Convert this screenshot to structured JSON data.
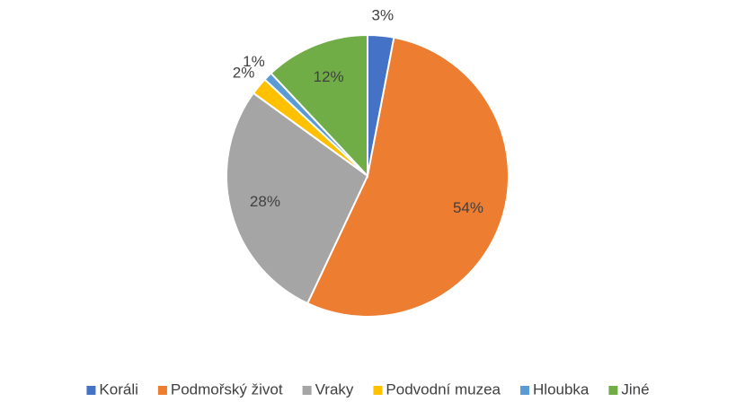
{
  "chart_data": {
    "type": "pie",
    "categories": [
      "Koráli",
      "Podmořský život",
      "Vraky",
      "Podvodní muzea",
      "Hloubka",
      "Jiné"
    ],
    "values": [
      3,
      54,
      28,
      2,
      1,
      12
    ],
    "value_labels": [
      "3%",
      "54%",
      "28%",
      "2%",
      "1%",
      "12%"
    ],
    "colors": [
      "#4472c4",
      "#ed7d31",
      "#a5a5a5",
      "#ffc000",
      "#5b9bd5",
      "#70ad47"
    ],
    "legend": "bottom"
  }
}
